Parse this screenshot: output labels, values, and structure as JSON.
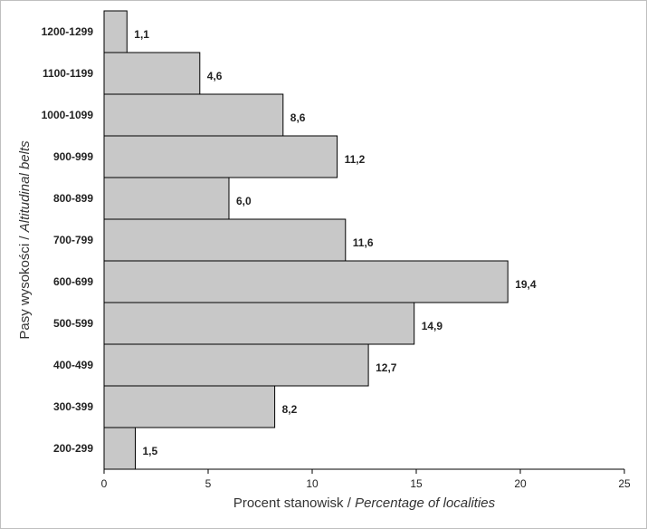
{
  "chart_data": {
    "type": "bar",
    "orientation": "horizontal",
    "categories": [
      "1200-1299",
      "1100-1199",
      "1000-1099",
      "900-999",
      "800-899",
      "700-799",
      "600-699",
      "500-599",
      "400-499",
      "300-399",
      "200-299"
    ],
    "values": [
      1.1,
      4.6,
      8.6,
      11.2,
      6.0,
      11.6,
      19.4,
      14.9,
      12.7,
      8.2,
      1.5
    ],
    "value_labels": [
      "1,1",
      "4,6",
      "8,6",
      "11,2",
      "6,0",
      "11,6",
      "19,4",
      "14,9",
      "12,7",
      "8,2",
      "1,5"
    ],
    "xlim": [
      0,
      25
    ],
    "xticks": [
      "0",
      "5",
      "10",
      "15",
      "20",
      "25"
    ],
    "xlabel": "Procent stanowisk / ",
    "xlabel_italic": "Percentage of localities",
    "ylabel": "Pasy wysokości / ",
    "ylabel_italic": "Altitudinal belts",
    "bar_color": "#c8c8c8",
    "grid": false,
    "legend": "none"
  }
}
